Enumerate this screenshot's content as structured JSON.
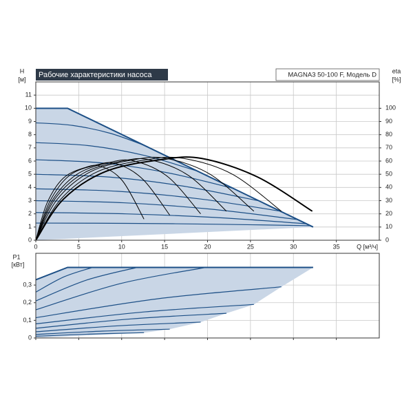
{
  "chart_data": [
    {
      "type": "line",
      "title": "Рабочие характеристики насоса",
      "subtitle": "MAGNA3 50-100 F, Модель D",
      "ylabel": "H",
      "yunit": "[м]",
      "y2label": "eta",
      "y2unit": "[%]",
      "xlabel": "Q [м³/ч]",
      "xlim": [
        0,
        40
      ],
      "xticks": [
        0,
        5,
        10,
        15,
        20,
        25,
        30,
        35
      ],
      "ylim": [
        0,
        12
      ],
      "yticks": [
        0,
        1,
        2,
        3,
        4,
        5,
        6,
        7,
        8,
        9,
        10,
        11
      ],
      "y2lim": [
        0,
        120
      ],
      "y2ticks": [
        0,
        10,
        20,
        30,
        40,
        50,
        60,
        70,
        80,
        90,
        100
      ],
      "grid": true,
      "area_color": "#c9d6e6",
      "series": [
        {
          "x": [
            0,
            3.7,
            32.3
          ],
          "values": [
            10,
            10,
            1.0
          ],
          "color": "#1c4f86",
          "width": 2
        },
        {
          "x": [
            0,
            4.3,
            8.7,
            13
          ],
          "values": [
            8.9,
            8.7,
            8.1,
            7.1
          ],
          "color": "#1c4f86",
          "width": 1.2
        },
        {
          "x": [
            0,
            6.3,
            12.7,
            19
          ],
          "values": [
            7.4,
            7.16,
            6.42,
            5.2
          ],
          "color": "#1c4f86",
          "width": 1.2
        },
        {
          "x": [
            0,
            7.7,
            15.3,
            23
          ],
          "values": [
            6.1,
            5.86,
            5.12,
            3.93
          ],
          "color": "#1c4f86",
          "width": 1.2
        },
        {
          "x": [
            0,
            8.7,
            17.3,
            26
          ],
          "values": [
            5.0,
            4.78,
            4.09,
            2.98
          ],
          "color": "#1c4f86",
          "width": 1.2
        },
        {
          "x": [
            0,
            9.5,
            19,
            28.5
          ],
          "values": [
            3.9,
            3.71,
            3.14,
            2.2
          ],
          "color": "#1c4f86",
          "width": 1.2
        },
        {
          "x": [
            0,
            10.2,
            20.3,
            30.5
          ],
          "values": [
            3.0,
            2.84,
            2.36,
            1.57
          ],
          "color": "#1c4f86",
          "width": 1.2
        },
        {
          "x": [
            0,
            10.5,
            21,
            31.5
          ],
          "values": [
            2.1,
            2.0,
            1.72,
            1.25
          ],
          "color": "#1c4f86",
          "width": 1.2
        },
        {
          "x": [
            0,
            10.7,
            21.3,
            32
          ],
          "values": [
            1.3,
            1.28,
            1.21,
            1.1
          ],
          "color": "#1c4f86",
          "width": 1.2
        },
        {
          "axis": "y2",
          "x": [
            0,
            1.3,
            3.2,
            5.7,
            7.6,
            10.1,
            12.6
          ],
          "values": [
            0,
            28,
            47,
            55,
            56,
            45,
            16
          ],
          "color": "#000000",
          "width": 1
        },
        {
          "axis": "y2",
          "x": [
            0,
            1.6,
            3.9,
            7.0,
            9.4,
            12.5,
            15.6
          ],
          "values": [
            0,
            29,
            49,
            57,
            58,
            46,
            19
          ],
          "color": "#000000",
          "width": 1
        },
        {
          "axis": "y2",
          "x": [
            0,
            1.9,
            4.8,
            8.6,
            11.5,
            15.4,
            19.2
          ],
          "values": [
            0,
            30,
            50,
            59,
            60,
            48,
            20
          ],
          "color": "#000000",
          "width": 1
        },
        {
          "axis": "y2",
          "x": [
            0,
            2.2,
            5.6,
            10.0,
            13.3,
            17.8,
            22.2
          ],
          "values": [
            0,
            31,
            51,
            60,
            61,
            49,
            22
          ],
          "color": "#000000",
          "width": 1
        },
        {
          "axis": "y2",
          "x": [
            0,
            2.5,
            6.4,
            11.4,
            15.2,
            20.3,
            25.4
          ],
          "values": [
            0,
            31,
            52,
            61,
            62,
            50,
            22
          ],
          "color": "#000000",
          "width": 1
        },
        {
          "axis": "y2",
          "x": [
            0,
            2.9,
            7.2,
            12.9,
            17.2,
            22.9,
            28.6
          ],
          "values": [
            0,
            31,
            52,
            61,
            62,
            50,
            22
          ],
          "color": "#000000",
          "width": 1
        },
        {
          "axis": "y2",
          "x": [
            0,
            3.2,
            8.1,
            14.5,
            19.3,
            25.8,
            32.2
          ],
          "values": [
            0,
            31,
            52,
            61,
            62,
            48,
            22
          ],
          "color": "#000000",
          "width": 2
        }
      ]
    },
    {
      "type": "line",
      "ylabel": "P1",
      "yunit": "[кВт]",
      "xlim": [
        0,
        40
      ],
      "ylim": [
        0,
        0.48
      ],
      "yticks": [
        0,
        {
          "value": 0.1,
          "label": "0,1"
        },
        {
          "value": 0.2,
          "label": "0,2"
        },
        {
          "value": 0.3,
          "label": "0,3"
        }
      ],
      "grid": true,
      "area_color": "#c9d6e6",
      "series": [
        {
          "x": [
            0,
            3.7,
            32.3
          ],
          "values": [
            0.33,
            0.4,
            0.4
          ],
          "color": "#1c4f86",
          "width": 2
        },
        {
          "x": [
            0,
            3.3,
            6.6
          ],
          "values": [
            0.26,
            0.347,
            0.4
          ],
          "color": "#1c4f86",
          "width": 1.2
        },
        {
          "x": [
            0,
            5.9,
            11.8
          ],
          "values": [
            0.21,
            0.328,
            0.4
          ],
          "color": "#1c4f86",
          "width": 1.2
        },
        {
          "x": [
            0,
            9.9,
            19.8
          ],
          "values": [
            0.16,
            0.309,
            0.4
          ],
          "color": "#1c4f86",
          "width": 1.2
        },
        {
          "x": [
            0,
            14.3,
            28.6
          ],
          "values": [
            0.115,
            0.223,
            0.29
          ],
          "color": "#1c4f86",
          "width": 1.2
        },
        {
          "x": [
            0,
            12.7,
            25.4
          ],
          "values": [
            0.08,
            0.148,
            0.19
          ],
          "color": "#1c4f86",
          "width": 1.2
        },
        {
          "x": [
            0,
            11.1,
            22.2
          ],
          "values": [
            0.055,
            0.108,
            0.14
          ],
          "color": "#1c4f86",
          "width": 1.2
        },
        {
          "x": [
            0,
            9.6,
            19.2
          ],
          "values": [
            0.035,
            0.069,
            0.09
          ],
          "color": "#1c4f86",
          "width": 1.2
        },
        {
          "x": [
            0,
            7.8,
            15.6
          ],
          "values": [
            0.02,
            0.039,
            0.05
          ],
          "color": "#1c4f86",
          "width": 1.2
        },
        {
          "x": [
            0,
            6.3,
            12.6
          ],
          "values": [
            0.01,
            0.022,
            0.03
          ],
          "color": "#1c4f86",
          "width": 1.2
        }
      ]
    }
  ]
}
